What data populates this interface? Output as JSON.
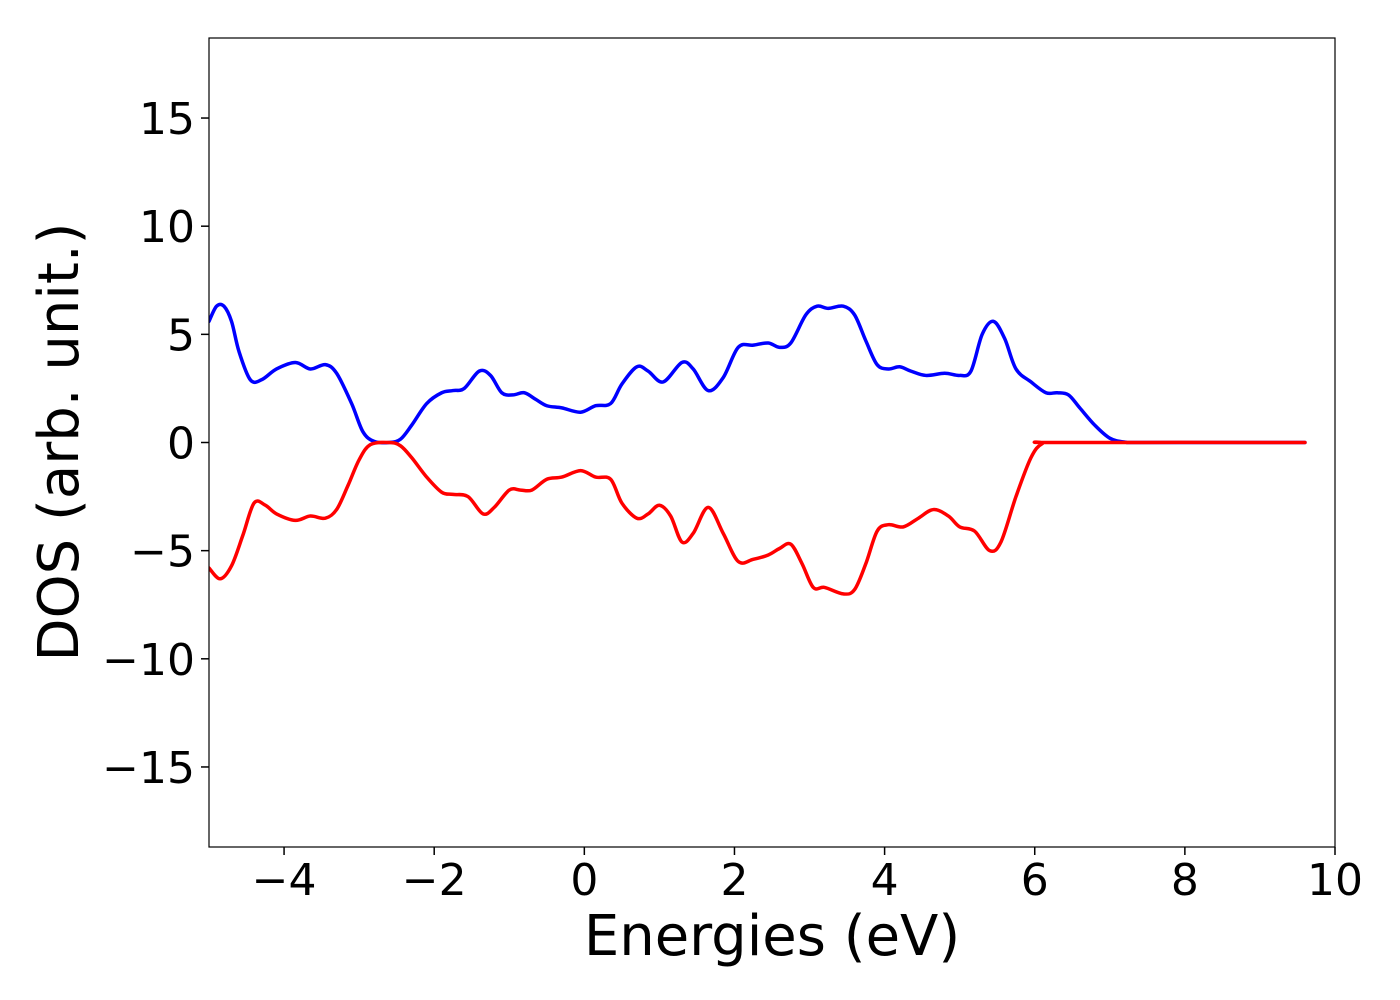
{
  "chart_data": {
    "type": "line",
    "title": "",
    "xlabel": "Energies (eV)",
    "ylabel": "DOS (arb. unit.)",
    "xlim": [
      -5,
      10
    ],
    "ylim": [
      -18.7,
      18.7
    ],
    "xticks": [
      -4,
      -2,
      0,
      2,
      4,
      6,
      8,
      10
    ],
    "xtick_labels": [
      "−4",
      "−2",
      "0",
      "2",
      "4",
      "6",
      "8",
      "10"
    ],
    "yticks": [
      -15,
      -10,
      -5,
      0,
      5,
      10,
      15
    ],
    "ytick_labels": [
      "−15",
      "−10",
      "−5",
      "0",
      "5",
      "10",
      "15"
    ],
    "grid": false,
    "legend": "none",
    "series": [
      {
        "color": "#0000ff",
        "points": [
          [
            -5.0,
            5.6
          ],
          [
            -4.9,
            6.3
          ],
          [
            -4.8,
            6.3
          ],
          [
            -4.7,
            5.6
          ],
          [
            -4.6,
            4.2
          ],
          [
            -4.45,
            2.9
          ],
          [
            -4.3,
            2.9
          ],
          [
            -4.1,
            3.4
          ],
          [
            -3.85,
            3.7
          ],
          [
            -3.65,
            3.4
          ],
          [
            -3.45,
            3.6
          ],
          [
            -3.3,
            3.2
          ],
          [
            -3.1,
            1.8
          ],
          [
            -2.95,
            0.5
          ],
          [
            -2.8,
            0.05
          ],
          [
            -2.6,
            0.0
          ],
          [
            -2.45,
            0.15
          ],
          [
            -2.3,
            0.8
          ],
          [
            -2.1,
            1.8
          ],
          [
            -1.9,
            2.3
          ],
          [
            -1.75,
            2.4
          ],
          [
            -1.6,
            2.5
          ],
          [
            -1.4,
            3.3
          ],
          [
            -1.25,
            3.1
          ],
          [
            -1.1,
            2.3
          ],
          [
            -0.95,
            2.2
          ],
          [
            -0.8,
            2.3
          ],
          [
            -0.65,
            2.0
          ],
          [
            -0.5,
            1.7
          ],
          [
            -0.3,
            1.6
          ],
          [
            -0.05,
            1.4
          ],
          [
            0.15,
            1.7
          ],
          [
            0.35,
            1.8
          ],
          [
            0.5,
            2.7
          ],
          [
            0.7,
            3.5
          ],
          [
            0.85,
            3.3
          ],
          [
            1.05,
            2.8
          ],
          [
            1.3,
            3.7
          ],
          [
            1.45,
            3.4
          ],
          [
            1.65,
            2.4
          ],
          [
            1.85,
            3.0
          ],
          [
            2.05,
            4.4
          ],
          [
            2.25,
            4.5
          ],
          [
            2.45,
            4.6
          ],
          [
            2.6,
            4.4
          ],
          [
            2.75,
            4.6
          ],
          [
            2.95,
            5.9
          ],
          [
            3.1,
            6.3
          ],
          [
            3.25,
            6.2
          ],
          [
            3.45,
            6.3
          ],
          [
            3.6,
            5.9
          ],
          [
            3.75,
            4.7
          ],
          [
            3.9,
            3.6
          ],
          [
            4.05,
            3.4
          ],
          [
            4.2,
            3.5
          ],
          [
            4.35,
            3.3
          ],
          [
            4.55,
            3.1
          ],
          [
            4.8,
            3.2
          ],
          [
            5.0,
            3.1
          ],
          [
            5.15,
            3.3
          ],
          [
            5.3,
            5.0
          ],
          [
            5.45,
            5.6
          ],
          [
            5.6,
            4.8
          ],
          [
            5.75,
            3.4
          ],
          [
            5.95,
            2.8
          ],
          [
            6.15,
            2.3
          ],
          [
            6.3,
            2.3
          ],
          [
            6.45,
            2.2
          ],
          [
            6.6,
            1.6
          ],
          [
            6.8,
            0.8
          ],
          [
            7.0,
            0.2
          ],
          [
            7.2,
            0.02
          ],
          [
            7.5,
            0.0
          ],
          [
            9.6,
            0.0
          ]
        ]
      },
      {
        "color": "#ff0000",
        "points": [
          [
            -5.0,
            -5.8
          ],
          [
            -4.85,
            -6.3
          ],
          [
            -4.7,
            -5.7
          ],
          [
            -4.55,
            -4.3
          ],
          [
            -4.4,
            -2.8
          ],
          [
            -4.25,
            -2.9
          ],
          [
            -4.1,
            -3.3
          ],
          [
            -3.85,
            -3.6
          ],
          [
            -3.65,
            -3.4
          ],
          [
            -3.45,
            -3.5
          ],
          [
            -3.3,
            -3.1
          ],
          [
            -3.15,
            -2.0
          ],
          [
            -3.0,
            -0.8
          ],
          [
            -2.85,
            -0.1
          ],
          [
            -2.6,
            0.0
          ],
          [
            -2.45,
            -0.15
          ],
          [
            -2.3,
            -0.7
          ],
          [
            -2.1,
            -1.6
          ],
          [
            -1.9,
            -2.3
          ],
          [
            -1.75,
            -2.4
          ],
          [
            -1.55,
            -2.5
          ],
          [
            -1.35,
            -3.3
          ],
          [
            -1.2,
            -3.0
          ],
          [
            -1.0,
            -2.2
          ],
          [
            -0.85,
            -2.2
          ],
          [
            -0.7,
            -2.2
          ],
          [
            -0.5,
            -1.7
          ],
          [
            -0.3,
            -1.6
          ],
          [
            -0.05,
            -1.3
          ],
          [
            0.15,
            -1.6
          ],
          [
            0.35,
            -1.7
          ],
          [
            0.5,
            -2.8
          ],
          [
            0.7,
            -3.5
          ],
          [
            0.85,
            -3.3
          ],
          [
            1.0,
            -2.9
          ],
          [
            1.15,
            -3.4
          ],
          [
            1.3,
            -4.6
          ],
          [
            1.45,
            -4.2
          ],
          [
            1.65,
            -3.0
          ],
          [
            1.85,
            -4.2
          ],
          [
            2.05,
            -5.5
          ],
          [
            2.25,
            -5.4
          ],
          [
            2.45,
            -5.2
          ],
          [
            2.6,
            -4.9
          ],
          [
            2.75,
            -4.7
          ],
          [
            2.9,
            -5.6
          ],
          [
            3.05,
            -6.7
          ],
          [
            3.2,
            -6.7
          ],
          [
            3.45,
            -7.0
          ],
          [
            3.6,
            -6.8
          ],
          [
            3.75,
            -5.6
          ],
          [
            3.9,
            -4.1
          ],
          [
            4.05,
            -3.8
          ],
          [
            4.25,
            -3.9
          ],
          [
            4.45,
            -3.5
          ],
          [
            4.65,
            -3.1
          ],
          [
            4.85,
            -3.4
          ],
          [
            5.0,
            -3.9
          ],
          [
            5.2,
            -4.1
          ],
          [
            5.4,
            -5.0
          ],
          [
            5.55,
            -4.6
          ],
          [
            5.75,
            -2.5
          ],
          [
            5.95,
            -0.7
          ],
          [
            6.1,
            -0.05
          ],
          [
            6.3,
            0.0
          ],
          [
            9.6,
            0.0
          ]
        ]
      }
    ]
  }
}
